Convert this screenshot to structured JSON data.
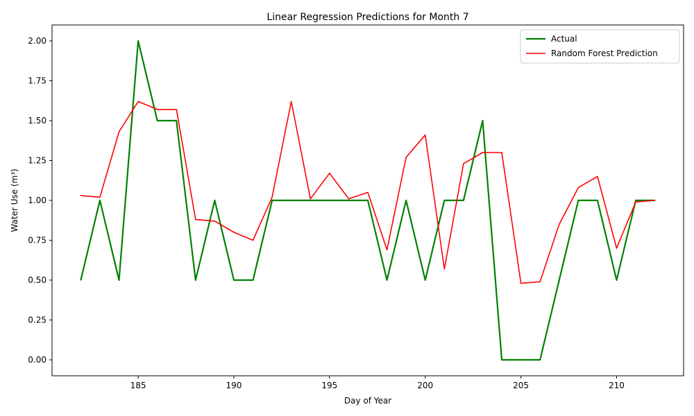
{
  "chart_data": {
    "type": "line",
    "title": "Linear Regression Predictions for Month 7",
    "xlabel": "Day of Year",
    "ylabel": "Water Use (m³)",
    "xlim": [
      180.5,
      213.5
    ],
    "ylim": [
      -0.1,
      2.1
    ],
    "xticks": [
      185,
      190,
      195,
      200,
      205,
      210
    ],
    "yticks": [
      0.0,
      0.25,
      0.5,
      0.75,
      1.0,
      1.25,
      1.5,
      1.75,
      2.0
    ],
    "ytick_labels": [
      "0.00",
      "0.25",
      "0.50",
      "0.75",
      "1.00",
      "1.25",
      "1.50",
      "1.75",
      "2.00"
    ],
    "grid": false,
    "legend_position": "upper right",
    "x": [
      182,
      183,
      184,
      185,
      186,
      187,
      188,
      189,
      190,
      191,
      192,
      193,
      194,
      195,
      196,
      197,
      198,
      199,
      200,
      201,
      202,
      203,
      204,
      205,
      206,
      207,
      208,
      209,
      210,
      211,
      212
    ],
    "series": [
      {
        "name": "Actual",
        "color": "#008000",
        "values": [
          0.5,
          1.0,
          0.5,
          2.0,
          1.5,
          1.5,
          0.5,
          1.0,
          0.5,
          0.5,
          1.0,
          1.0,
          1.0,
          1.0,
          1.0,
          1.0,
          0.5,
          1.0,
          0.5,
          1.0,
          1.0,
          1.5,
          0.0,
          0.0,
          0.0,
          0.5,
          1.0,
          1.0,
          0.5,
          1.0,
          1.0
        ]
      },
      {
        "name": "Random Forest Prediction",
        "color": "#ff0000",
        "values": [
          1.03,
          1.02,
          1.43,
          1.62,
          1.57,
          1.57,
          0.88,
          0.87,
          0.8,
          0.75,
          1.02,
          1.62,
          1.01,
          1.17,
          1.01,
          1.05,
          0.69,
          1.27,
          1.41,
          0.57,
          1.23,
          1.3,
          1.3,
          0.48,
          0.49,
          0.85,
          1.08,
          1.15,
          0.7,
          0.99,
          1.0
        ]
      }
    ]
  }
}
